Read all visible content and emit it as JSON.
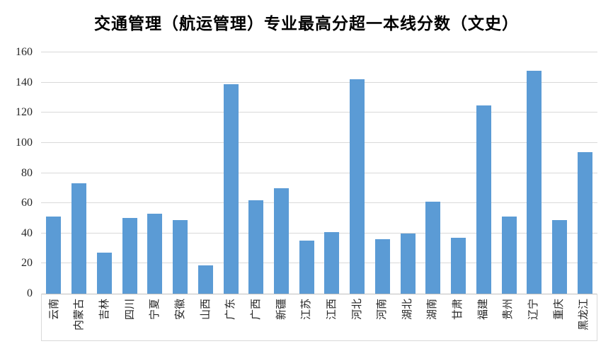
{
  "title": "交通管理（航运管理）专业最高分超一本线分数（文史）",
  "chart_data": {
    "type": "bar",
    "title": "交通管理（航运管理）专业最高分超一本线分数（文史）",
    "categories": [
      "云南",
      "内蒙古",
      "吉林",
      "四川",
      "宁夏",
      "安徽",
      "山西",
      "广东",
      "广西",
      "新疆",
      "江苏",
      "江西",
      "河北",
      "河南",
      "湖北",
      "湖南",
      "甘肃",
      "福建",
      "贵州",
      "辽宁",
      "重庆",
      "黑龙江"
    ],
    "values": [
      51,
      73,
      27,
      50,
      53,
      49,
      19,
      139,
      62,
      70,
      35,
      41,
      142,
      36,
      40,
      61,
      37,
      125,
      51,
      148,
      49,
      94
    ],
    "xlabel": "",
    "ylabel": "",
    "ylim": [
      0,
      160
    ],
    "yticks": [
      0,
      20,
      40,
      60,
      80,
      100,
      120,
      140,
      160
    ],
    "grid": true,
    "legend_position": "none",
    "x_label_rotation_degrees": -90,
    "colors": {
      "bar": "#5b9bd5",
      "gridline": "#d9d9d9",
      "axis_line": "#bfbfbf",
      "text": "#262626",
      "title_text": "#000000",
      "background": "#ffffff"
    }
  }
}
